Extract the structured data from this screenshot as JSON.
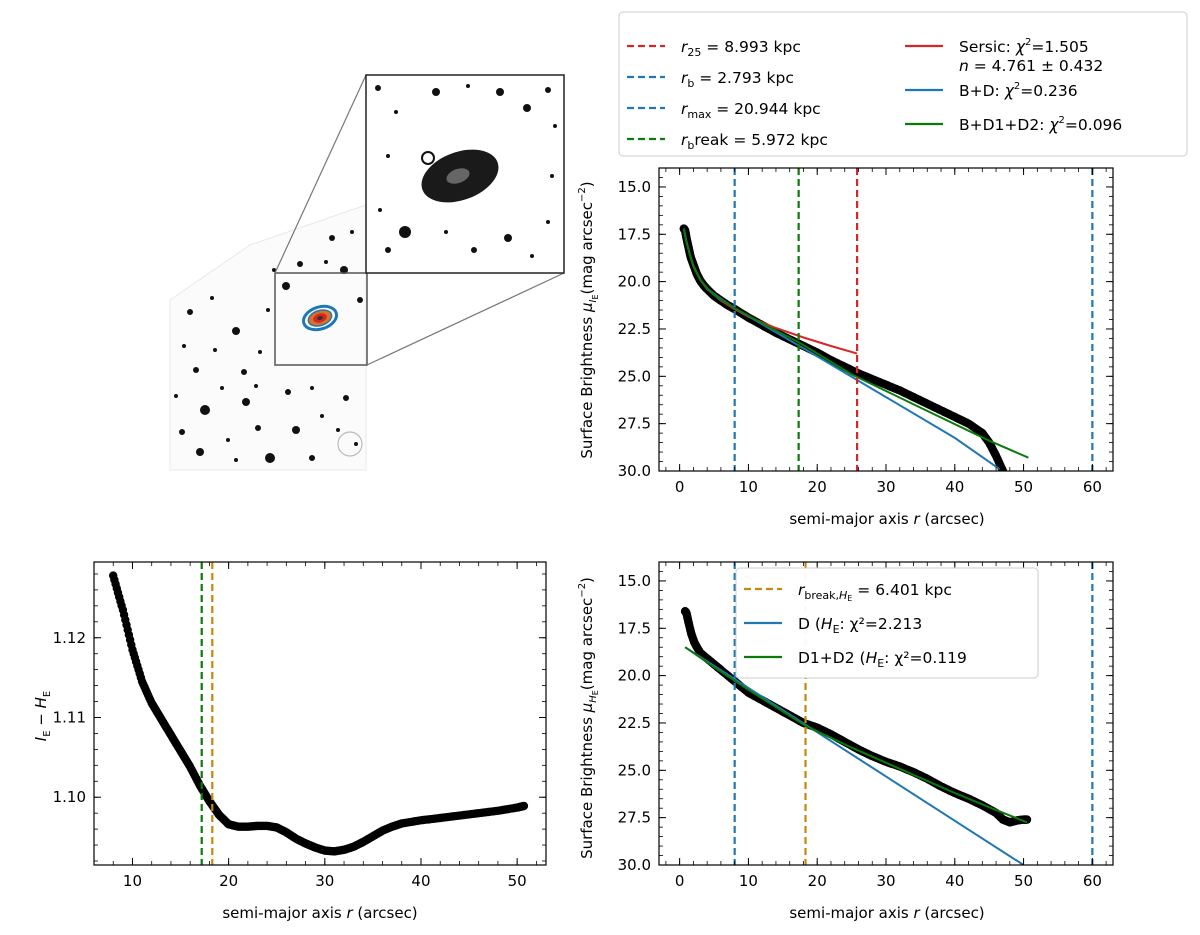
{
  "colors": {
    "red": "#d62728",
    "blue": "#1f77b4",
    "green": "#0a7a0a",
    "gold": "#c8860a",
    "black": "#000000"
  },
  "legend_top": {
    "left": [
      {
        "label": "r₂₅ = 8.993 kpc",
        "color": "red",
        "dash": true
      },
      {
        "label": "r_b = 2.793 kpc",
        "color": "blue",
        "dash": true
      },
      {
        "label": "r_max = 20.944 kpc",
        "color": "blue",
        "dash": true
      },
      {
        "label": "r_break = 5.972 kpc",
        "color": "green",
        "dash": true
      }
    ],
    "right": [
      {
        "label": "Sersic: χ²=1.505",
        "label2": "n = 4.761 ± 0.432",
        "color": "red",
        "dash": false
      },
      {
        "label": "B+D: χ²=0.236",
        "color": "blue",
        "dash": false
      },
      {
        "label": "B+D1+D2: χ²=0.096",
        "color": "green",
        "dash": false
      }
    ]
  },
  "legend_bottom": [
    {
      "label": "r_break,H_E = 6.401 kpc",
      "color": "gold",
      "dash": true
    },
    {
      "label": "D (H_E): χ²=2.213",
      "color": "blue",
      "dash": false
    },
    {
      "label": "D1+D2 (H_E): χ²=0.119",
      "color": "green",
      "dash": false
    }
  ],
  "chart_data": [
    {
      "id": "top-right",
      "type": "line",
      "xlabel": "semi-major axis r (arcsec)",
      "ylabel": "Surface Brightness μ_IE (mag arcsec⁻²)",
      "xlim": [
        -3,
        63
      ],
      "ylim": [
        30,
        14
      ],
      "xticks": [
        0,
        10,
        20,
        30,
        40,
        50,
        60
      ],
      "yticks": [
        15.0,
        17.5,
        20.0,
        22.5,
        25.0,
        27.5,
        30.0
      ],
      "vlines": [
        {
          "x": 8.0,
          "color": "blue"
        },
        {
          "x": 17.3,
          "color": "green"
        },
        {
          "x": 25.8,
          "color": "red"
        },
        {
          "x": 60.0,
          "color": "blue"
        }
      ],
      "series": [
        {
          "style": "points",
          "color": "black",
          "x": [
            0.6,
            0.8,
            1.0,
            1.3,
            1.6,
            2.0,
            2.5,
            3.0,
            3.5,
            4.0,
            5.0,
            6.0,
            7.0,
            8.0,
            10.0,
            12.0,
            14.0,
            16.0,
            18.0,
            20.0,
            22.0,
            24.0,
            26.0,
            28.0,
            30.0,
            32.0,
            34.0,
            36.0,
            38.0,
            40.0,
            42.0,
            44.0,
            45.0,
            46.0,
            47.0
          ],
          "y": [
            17.2,
            17.3,
            17.7,
            18.2,
            18.7,
            19.1,
            19.6,
            19.95,
            20.2,
            20.4,
            20.75,
            21.0,
            21.25,
            21.45,
            21.9,
            22.3,
            22.7,
            23.05,
            23.4,
            23.75,
            24.15,
            24.5,
            24.85,
            25.15,
            25.45,
            25.75,
            26.1,
            26.45,
            26.8,
            27.15,
            27.5,
            28.0,
            28.5,
            29.2,
            30.0
          ]
        },
        {
          "style": "line",
          "color": "red",
          "x": [
            0.6,
            1.0,
            1.5,
            2.0,
            3.0,
            4.0,
            6.0,
            8.0,
            10.0,
            14.0,
            18.0,
            22.0,
            25.8
          ],
          "y": [
            17.2,
            17.9,
            18.6,
            19.15,
            19.9,
            20.4,
            21.0,
            21.45,
            21.85,
            22.45,
            22.95,
            23.4,
            23.8
          ]
        },
        {
          "style": "line",
          "color": "blue",
          "x": [
            0.6,
            1.0,
            1.5,
            2.0,
            3.0,
            4.0,
            5.0,
            6.0,
            8.0,
            12.0,
            20.0,
            30.0,
            40.0,
            46.5
          ],
          "y": [
            17.2,
            17.9,
            18.6,
            19.2,
            19.9,
            20.35,
            20.65,
            20.9,
            21.4,
            22.25,
            23.95,
            26.1,
            28.25,
            29.9
          ]
        },
        {
          "style": "line",
          "color": "green",
          "x": [
            0.6,
            1.0,
            1.5,
            2.0,
            3.0,
            4.0,
            5.0,
            6.0,
            8.0,
            12.0,
            17.3,
            25.0,
            35.0,
            45.0,
            50.7
          ],
          "y": [
            17.2,
            17.9,
            18.6,
            19.2,
            19.9,
            20.35,
            20.7,
            20.95,
            21.4,
            22.2,
            23.2,
            24.9,
            26.65,
            28.4,
            29.3
          ]
        }
      ]
    },
    {
      "id": "bottom-left",
      "type": "scatter",
      "xlabel": "semi-major axis r (arcsec)",
      "ylabel": "I_E − H_E",
      "xlim": [
        6,
        53
      ],
      "ylim": [
        1.0915,
        1.1295
      ],
      "xticks": [
        10,
        20,
        30,
        40,
        50
      ],
      "yticks": [
        1.1,
        1.11,
        1.12
      ],
      "vlines": [
        {
          "x": 17.2,
          "color": "green"
        },
        {
          "x": 18.3,
          "color": "gold"
        }
      ],
      "series": [
        {
          "style": "points",
          "color": "black",
          "x": [
            8.0,
            9.0,
            10.0,
            11.0,
            12.0,
            13.0,
            14.0,
            15.0,
            16.0,
            17.0,
            18.0,
            19.0,
            20.0,
            21.0,
            22.0,
            23.0,
            24.0,
            25.0,
            26.0,
            27.0,
            28.0,
            29.0,
            30.0,
            31.0,
            32.0,
            33.0,
            34.0,
            35.0,
            36.0,
            37.0,
            38.0,
            40.0,
            42.0,
            44.0,
            46.0,
            48.0,
            50.0,
            50.7
          ],
          "y": [
            1.1278,
            1.1235,
            1.1185,
            1.1145,
            1.1118,
            1.1098,
            1.1078,
            1.1058,
            1.1038,
            1.1015,
            1.0995,
            1.0978,
            1.0966,
            1.0963,
            1.0963,
            1.0964,
            1.0964,
            1.0962,
            1.0956,
            1.0948,
            1.0942,
            1.0937,
            1.0933,
            1.0932,
            1.0934,
            1.0938,
            1.0944,
            1.0951,
            1.0958,
            1.0963,
            1.0967,
            1.0971,
            1.0974,
            1.0977,
            1.098,
            1.0983,
            1.0987,
            1.0989
          ]
        }
      ]
    },
    {
      "id": "bottom-right",
      "type": "line",
      "xlabel": "semi-major axis r (arcsec)",
      "ylabel": "Surface Brightness μ_HE (mag arcsec⁻²)",
      "xlim": [
        -3,
        63
      ],
      "ylim": [
        30,
        14
      ],
      "xticks": [
        0,
        10,
        20,
        30,
        40,
        50,
        60
      ],
      "yticks": [
        15.0,
        17.5,
        20.0,
        22.5,
        25.0,
        27.5,
        30.0
      ],
      "vlines": [
        {
          "x": 8.0,
          "color": "blue"
        },
        {
          "x": 18.3,
          "color": "gold"
        },
        {
          "x": 60.0,
          "color": "blue"
        }
      ],
      "series": [
        {
          "style": "points",
          "color": "black",
          "x": [
            0.8,
            1.0,
            1.3,
            1.7,
            2.2,
            3.0,
            4.0,
            5.0,
            6.0,
            8.0,
            10.0,
            12.0,
            14.0,
            16.0,
            18.0,
            20.0,
            22.0,
            24.0,
            26.0,
            28.0,
            30.0,
            32.0,
            34.0,
            36.0,
            38.0,
            40.0,
            42.0,
            44.0,
            46.0,
            47.0,
            48.0,
            49.0,
            50.0,
            50.5
          ],
          "y": [
            16.6,
            16.7,
            17.2,
            17.8,
            18.3,
            18.8,
            19.1,
            19.4,
            19.7,
            20.3,
            20.9,
            21.3,
            21.7,
            22.1,
            22.5,
            22.75,
            23.1,
            23.5,
            23.9,
            24.25,
            24.55,
            24.8,
            25.1,
            25.45,
            25.85,
            26.2,
            26.5,
            26.85,
            27.25,
            27.6,
            27.75,
            27.65,
            27.6,
            27.6
          ]
        },
        {
          "style": "line",
          "color": "blue",
          "x": [
            0.8,
            50.0
          ],
          "y": [
            18.5,
            30.0
          ]
        },
        {
          "style": "line",
          "color": "green",
          "x": [
            0.8,
            5.0,
            10.0,
            18.3,
            25.0,
            30.0,
            35.0,
            40.0,
            45.0,
            50.5
          ],
          "y": [
            18.5,
            19.55,
            20.75,
            22.65,
            23.8,
            24.6,
            25.4,
            26.2,
            26.95,
            27.75
          ]
        }
      ]
    }
  ]
}
